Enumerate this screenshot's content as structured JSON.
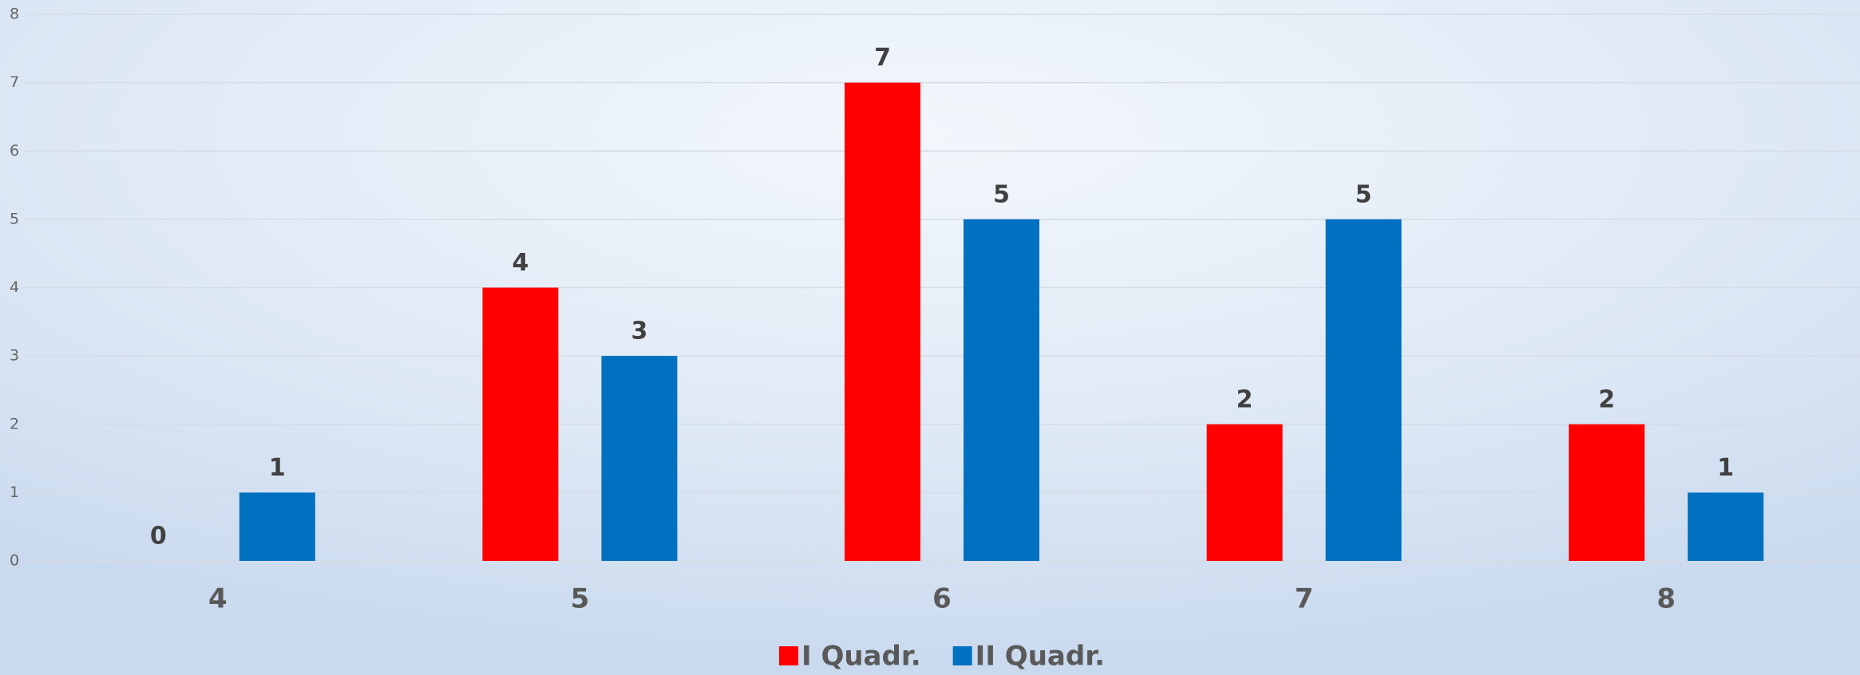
{
  "chart_data": {
    "type": "bar",
    "categories": [
      "4",
      "5",
      "6",
      "7",
      "8"
    ],
    "series": [
      {
        "name": "I Quadr.",
        "color": "#ff0000",
        "values": [
          0,
          4,
          7,
          2,
          2
        ]
      },
      {
        "name": "II Quadr.",
        "color": "#0070c0",
        "values": [
          1,
          3,
          5,
          5,
          1
        ]
      }
    ],
    "ylim": [
      0,
      8
    ],
    "yticks": [
      0,
      1,
      2,
      3,
      4,
      5,
      6,
      7,
      8
    ],
    "grid": true,
    "legend": "bottom"
  }
}
